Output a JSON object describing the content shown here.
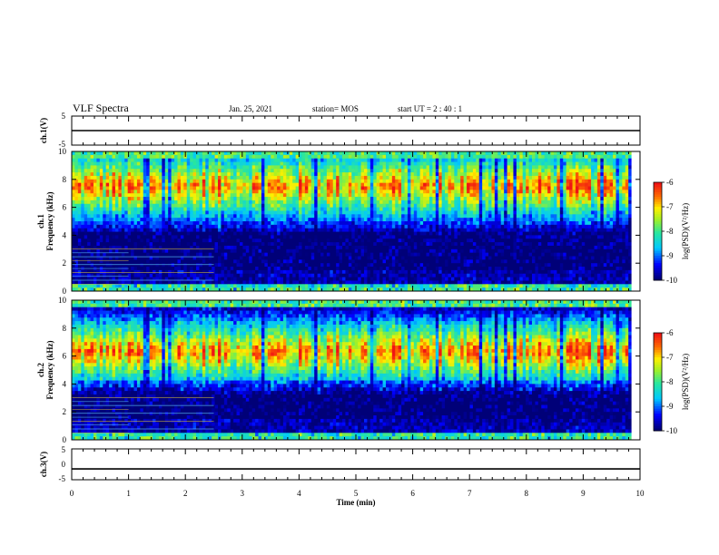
{
  "header": {
    "title": "VLF Spectra",
    "date": "Jan. 25, 2021",
    "station": "station= MOS",
    "start": "start  UT =  2 : 40 : 1"
  },
  "chart_data": [
    {
      "type": "line",
      "name": "ch1-waveform",
      "ylabel": "ch.1(V)",
      "ylim": [
        -5,
        5
      ],
      "yticks": [
        "5",
        "-5"
      ],
      "x": [
        0,
        10
      ],
      "values": [
        0,
        0
      ],
      "xlim": [
        0,
        10
      ]
    },
    {
      "type": "heatmap",
      "name": "ch1-spectrogram",
      "ylabel": "ch.1\nFrequency (kHz)",
      "ylim": [
        0,
        10
      ],
      "yticks": [
        "0",
        "2",
        "4",
        "6",
        "8",
        "10"
      ],
      "xlim": [
        0,
        10
      ],
      "data_end_min": 9.85,
      "band_center_khz": 7.5,
      "colorbar": {
        "label": "log(PSD)(V²/Hz)",
        "ticks": [
          "-6",
          "-7",
          "-8",
          "-9",
          "-10"
        ],
        "range": [
          -10,
          -6
        ]
      }
    },
    {
      "type": "heatmap",
      "name": "ch2-spectrogram",
      "ylabel": "ch.2\nFrequency (kHz)",
      "ylim": [
        0,
        10
      ],
      "yticks": [
        "0",
        "2",
        "4",
        "6",
        "8",
        "10"
      ],
      "xlim": [
        0,
        10
      ],
      "data_end_min": 9.85,
      "band_center_khz": 6.3,
      "colorbar": {
        "label": "log(PSD)(V²/Hz)",
        "ticks": [
          "-6",
          "-7",
          "-8",
          "-9",
          "-10"
        ],
        "range": [
          -10,
          -6
        ]
      }
    },
    {
      "type": "line",
      "name": "ch3-waveform",
      "ylabel": "ch.3(V)",
      "ylim": [
        -5,
        5
      ],
      "yticks": [
        "5",
        "0",
        "-5"
      ],
      "x": [
        0,
        10
      ],
      "values": [
        -1.5,
        -1.5
      ],
      "xlim": [
        0,
        10
      ]
    }
  ],
  "xaxis": {
    "label": "Time  (min)",
    "ticks": [
      "0",
      "1",
      "2",
      "3",
      "4",
      "5",
      "6",
      "7",
      "8",
      "9",
      "10"
    ]
  }
}
